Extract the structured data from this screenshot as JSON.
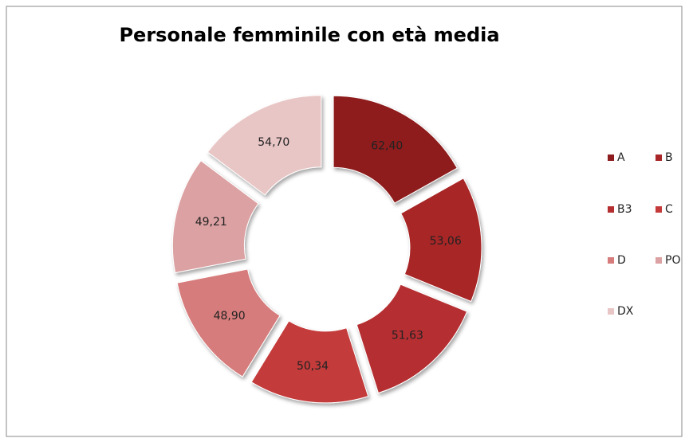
{
  "chart_data": {
    "type": "doughnut",
    "title": "Personale femminile con età media",
    "categories": [
      "A",
      "B",
      "B3",
      "C",
      "D",
      "PO",
      "DX"
    ],
    "values": [
      62.4,
      53.06,
      51.63,
      50.34,
      48.9,
      49.21,
      54.7
    ],
    "value_labels": [
      "62,40",
      "53,06",
      "51,63",
      "50,34",
      "48,90",
      "49,21",
      "54,70"
    ],
    "colors": [
      "#8e1c1e",
      "#a82628",
      "#b52e30",
      "#c43a3b",
      "#d77c7c",
      "#dca1a2",
      "#e9c6c6"
    ],
    "legend": "right"
  }
}
